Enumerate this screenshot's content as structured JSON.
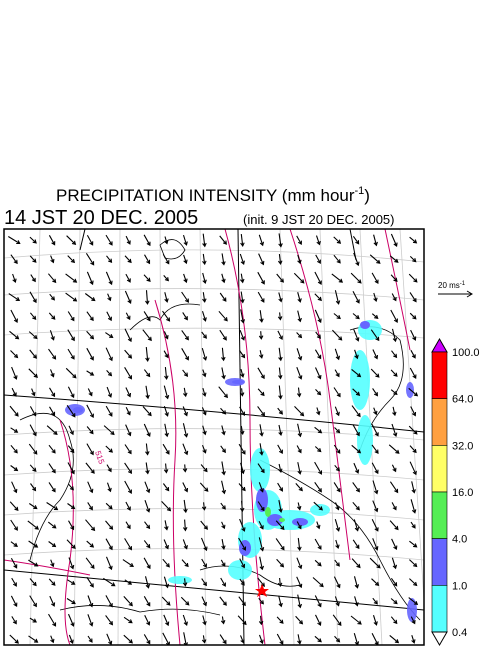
{
  "header": {
    "title": "PRECIPITATION INTENSITY (mm hour",
    "title_sup": "-1",
    "title_end": ")",
    "time": "14 JST 20 DEC. 2005",
    "init": "(init. 9 JST 20 DEC. 2005)"
  },
  "legend": {
    "reference_vector": "20 ms",
    "reference_sup": "-1"
  },
  "colorbar": {
    "levels": [
      "100.0",
      "64.0",
      "32.0",
      "16.0",
      "4.0",
      "1.0",
      "0.4"
    ],
    "over_color": "#cc00ff",
    "colors": [
      "#ff0000",
      "#ffa040",
      "#ffff66",
      "#55ee55",
      "#6666ff",
      "#55ffff"
    ],
    "under_color": "#ffffff"
  },
  "map": {
    "contour_label": "515"
  }
}
